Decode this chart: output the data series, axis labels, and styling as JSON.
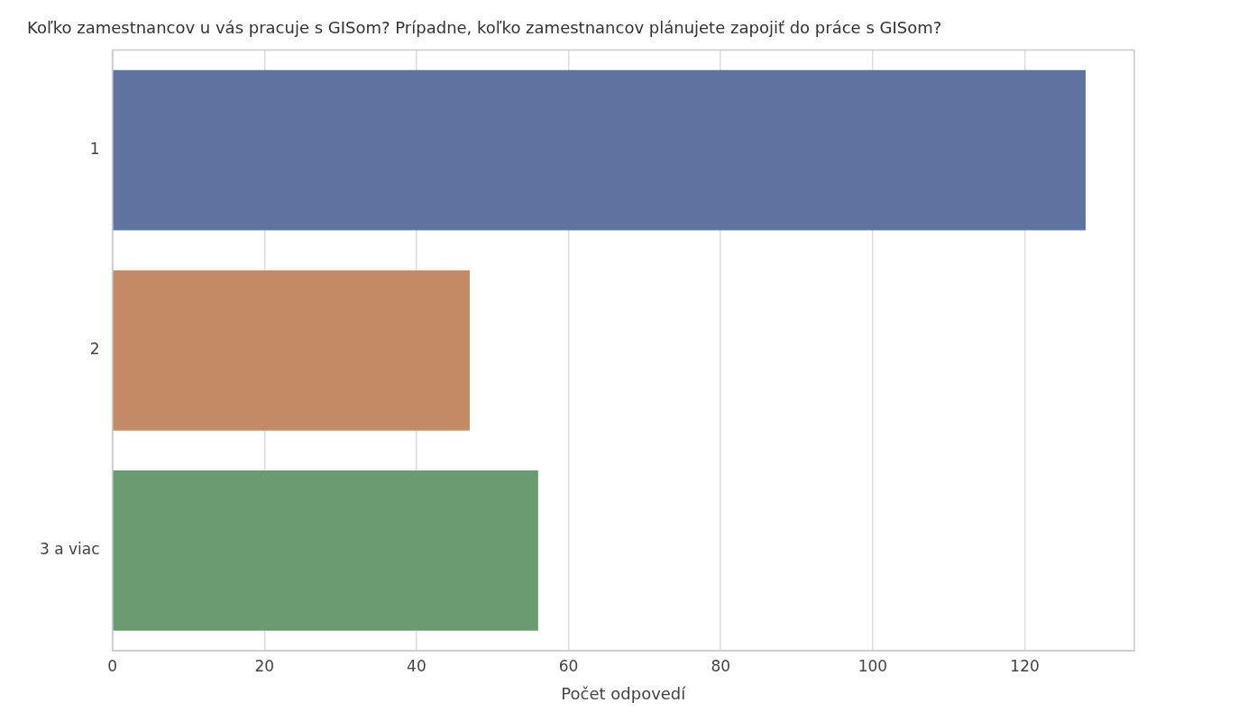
{
  "chart_data": {
    "type": "bar",
    "orientation": "horizontal",
    "title": "Koľko zamestnancov u vás pracuje s GISom? Prípadne, koľko zamestnancov plánujete zapojiť do práce s GISom?",
    "xlabel": "Počet odpovedí",
    "categories": [
      "1",
      "2",
      "3 a viac"
    ],
    "values": [
      128,
      47,
      56
    ],
    "colors": [
      "#5e73a0",
      "#c38b66",
      "#6b9c71"
    ],
    "xlim": [
      0,
      134.4
    ],
    "xticks": [
      0,
      20,
      40,
      60,
      80,
      100,
      120
    ],
    "grid": "x"
  }
}
